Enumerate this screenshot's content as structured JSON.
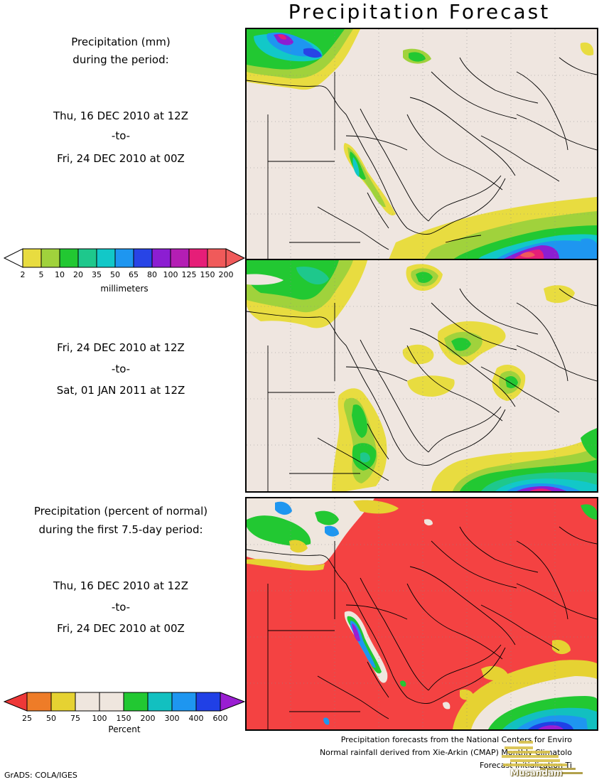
{
  "title": "Precipitation Forecast",
  "panel1": {
    "label_line1": "Precipitation (mm)",
    "label_line2": "during the period:",
    "start": "Thu, 16 DEC 2010 at 12Z",
    "to": "-to-",
    "end": "Fri, 24 DEC 2010 at 00Z"
  },
  "panel2": {
    "start": "Fri, 24 DEC 2010 at 12Z",
    "to": "-to-",
    "end": "Sat, 01 JAN 2011 at 12Z"
  },
  "panel3": {
    "label_line1": "Precipitation (percent of normal)",
    "label_line2": "during the first 7.5-day period:",
    "start": "Thu, 16 DEC 2010 at 12Z",
    "to": "-to-",
    "end": "Fri, 24 DEC 2010 at 00Z"
  },
  "colorbar_mm": {
    "ticks": [
      "2",
      "5",
      "10",
      "20",
      "35",
      "50",
      "65",
      "80",
      "100",
      "125",
      "150",
      "200"
    ],
    "title": "millimeters",
    "colors": [
      "#e8dc40",
      "#a0d23c",
      "#22c832",
      "#1ec88c",
      "#12c8c8",
      "#1e96f0",
      "#2844e6",
      "#8c1ed2",
      "#b41eb4",
      "#e61e78",
      "#f05a5a"
    ]
  },
  "colorbar_pct": {
    "ticks": [
      "25",
      "50",
      "75",
      "100",
      "150",
      "200",
      "300",
      "400",
      "600"
    ],
    "title": "Percent",
    "colors": [
      "#ee3838",
      "#ee7c28",
      "#e6d232",
      "#efe6de",
      "#efe6de",
      "#22c832",
      "#12c0c0",
      "#1e96f0",
      "#2040e6",
      "#9a1ed2"
    ]
  },
  "map_colors": {
    "land": "#efe6e0",
    "below_normal": "#f44242"
  },
  "footer": {
    "line1": "Precipitation forecasts from the National Centers for Enviro",
    "line2": "Normal rainfall derived from Xie-Arkin (CMAP) Monthly Climatolo",
    "line3": "Forecast Initialization Ti"
  },
  "credit": "GrADS: COLA/IGES",
  "watermark": "Musandam"
}
